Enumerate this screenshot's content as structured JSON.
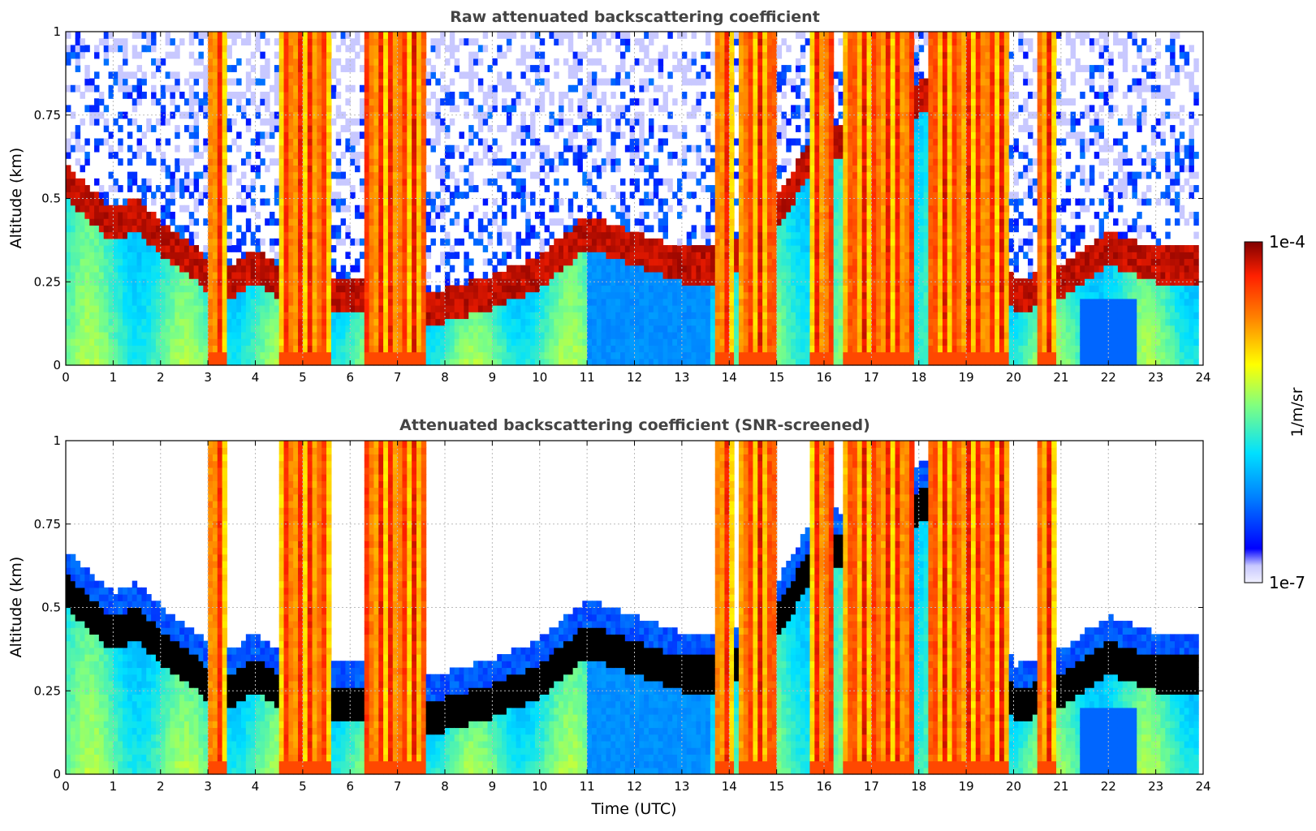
{
  "chart_data": [
    {
      "type": "heatmap",
      "title": "Raw attenuated backscattering coefficient",
      "xlabel": "",
      "ylabel": "Altitude (km)",
      "xlim": [
        0,
        24
      ],
      "ylim": [
        0,
        1
      ],
      "xticks": [
        0,
        1,
        2,
        3,
        4,
        5,
        6,
        7,
        8,
        9,
        10,
        11,
        12,
        13,
        14,
        15,
        16,
        17,
        18,
        19,
        20,
        21,
        22,
        23,
        24
      ],
      "yticks": [
        "0",
        "0.25",
        "0.5",
        "0.75",
        "1"
      ],
      "grid": true,
      "colormap": "jet",
      "screened": false
    },
    {
      "type": "heatmap",
      "title": "Attenuated backscattering coefficient (SNR-screened)",
      "xlabel": "Time (UTC)",
      "ylabel": "Altitude (km)",
      "xlim": [
        0,
        24
      ],
      "ylim": [
        0,
        1
      ],
      "xticks": [
        0,
        1,
        2,
        3,
        4,
        5,
        6,
        7,
        8,
        9,
        10,
        11,
        12,
        13,
        14,
        15,
        16,
        17,
        18,
        19,
        20,
        21,
        22,
        23,
        24
      ],
      "yticks": [
        "0",
        "0.25",
        "0.5",
        "0.75",
        "1"
      ],
      "grid": true,
      "colormap": "jet",
      "screened": true
    }
  ],
  "colorbar": {
    "max_label": "1e-4",
    "min_label": "1e-7",
    "unit_label": "1/m/sr",
    "colors": [
      "#f0f0ff",
      "#c8c8ff",
      "#0000ff",
      "#0080ff",
      "#00e0ff",
      "#80ff80",
      "#ffff00",
      "#ff8000",
      "#ff2000",
      "#800000"
    ]
  },
  "layer_profile": {
    "x_hours": [
      0,
      0.5,
      1,
      1.5,
      2,
      2.5,
      3,
      3.5,
      4,
      4.5,
      5,
      6,
      7,
      8,
      9,
      10,
      11,
      12,
      13,
      14,
      15,
      16,
      17,
      18,
      19,
      20,
      21,
      22,
      23,
      23.8
    ],
    "layer_km": [
      0.55,
      0.48,
      0.42,
      0.45,
      0.38,
      0.33,
      0.27,
      0.25,
      0.3,
      0.25,
      0.22,
      0.22,
      0.18,
      0.18,
      0.22,
      0.28,
      0.4,
      0.35,
      0.3,
      0.3,
      0.45,
      0.7,
      0.6,
      0.8,
      0.9,
      0.2,
      0.25,
      0.35,
      0.3,
      0.3
    ]
  }
}
